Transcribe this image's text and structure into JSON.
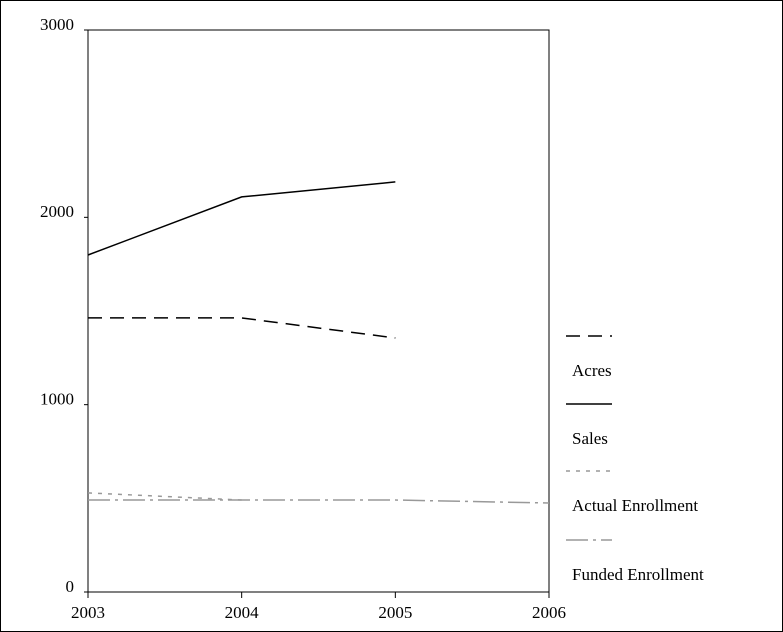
{
  "chart_data": {
    "type": "line",
    "x": [
      2003,
      2004,
      2005,
      2006
    ],
    "series": [
      {
        "name": "Acres",
        "color": "#000000",
        "dash": "14 8",
        "values": [
          1463,
          1463,
          1356,
          null
        ]
      },
      {
        "name": "Sales",
        "color": "#000000",
        "dash": "none",
        "values": [
          1799,
          2109,
          2189,
          null
        ]
      },
      {
        "name": "Actual Enrollment",
        "color": "#999999",
        "dash": "4 6",
        "values": [
          529,
          491,
          null,
          null
        ]
      },
      {
        "name": "Funded Enrollment",
        "color": "#999999",
        "dash": "22 5 3 5",
        "values": [
          491,
          491,
          491,
          475
        ]
      }
    ],
    "xlim": [
      2003,
      2006
    ],
    "xticks": [
      2003,
      2004,
      2005,
      2006
    ],
    "ylim": [
      0,
      3000
    ],
    "yticks": [
      0,
      1000,
      2000,
      3000
    ],
    "legend": "right"
  }
}
